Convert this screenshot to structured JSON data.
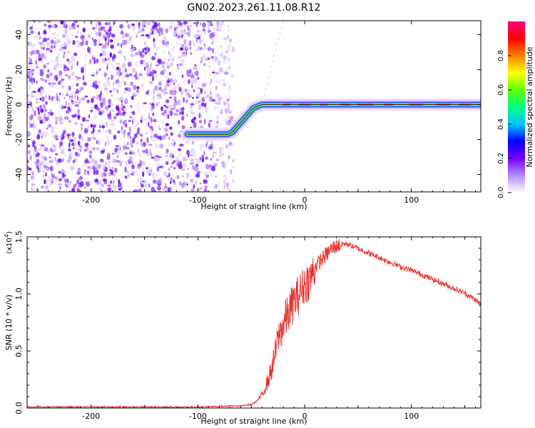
{
  "figure": {
    "title": "GN02.2023.261.11.08.R12"
  },
  "chart_data": [
    {
      "type": "heatmap",
      "xlabel": "Height of straight line (km)",
      "ylabel": "Frequency (Hz)",
      "xlim": [
        -260,
        165
      ],
      "ylim": [
        -50,
        48
      ],
      "xticks": [
        -200,
        -100,
        0,
        100
      ],
      "yticks": [
        -40,
        -20,
        0,
        20,
        40
      ],
      "grid": false,
      "noise_region_x": [
        -260,
        -72
      ],
      "ridge": {
        "x": [
          -110,
          -72,
          -68,
          -58,
          -48,
          -40,
          -30,
          -20,
          0,
          50,
          100,
          165
        ],
        "y": [
          -17,
          -17,
          -16,
          -9,
          -2,
          0,
          0,
          0,
          0,
          0,
          0,
          0
        ]
      },
      "ridge_widths": [
        3,
        3,
        4,
        4,
        4,
        4,
        4,
        4,
        4,
        5,
        4,
        4
      ],
      "colorbar": {
        "label": "Normalized spectral amplitude",
        "ticks": [
          0.0,
          0.2,
          0.4,
          0.6,
          0.8
        ],
        "range": [
          0,
          1
        ],
        "colormap": [
          "#ffffff",
          "#b28cff",
          "#7a00ff",
          "#0000ff",
          "#00c8ff",
          "#00ff80",
          "#60ff00",
          "#ffff00",
          "#ff8000",
          "#ff0000",
          "#ff0080"
        ]
      }
    },
    {
      "type": "line",
      "xlabel": "Height of straight line (km)",
      "ylabel": "SNR (10 * v/v)",
      "multiplier": "(x10",
      "multiplier_exp": "4",
      "xlim": [
        -260,
        165
      ],
      "ylim": [
        0,
        1.5
      ],
      "xticks": [
        -200,
        -100,
        0,
        100
      ],
      "yticks": [
        "0.0",
        "0.5",
        "1.0",
        "1.5"
      ],
      "grid": false,
      "series": [
        {
          "color": "#e8302c",
          "x": [
            -260,
            -200,
            -150,
            -100,
            -60,
            -50,
            -45,
            -40,
            -35,
            -30,
            -25,
            -20,
            -15,
            -10,
            -5,
            0,
            5,
            10,
            15,
            20,
            25,
            30,
            35,
            40,
            50,
            60,
            70,
            80,
            90,
            100,
            110,
            120,
            130,
            140,
            150,
            160,
            165
          ],
          "y": [
            0.01,
            0.01,
            0.01,
            0.01,
            0.02,
            0.03,
            0.06,
            0.12,
            0.23,
            0.38,
            0.62,
            0.75,
            0.85,
            0.95,
            1.02,
            1.1,
            1.15,
            1.25,
            1.3,
            1.35,
            1.4,
            1.43,
            1.44,
            1.44,
            1.4,
            1.36,
            1.32,
            1.28,
            1.24,
            1.21,
            1.17,
            1.13,
            1.09,
            1.05,
            1.01,
            0.95,
            0.91
          ]
        }
      ]
    }
  ]
}
